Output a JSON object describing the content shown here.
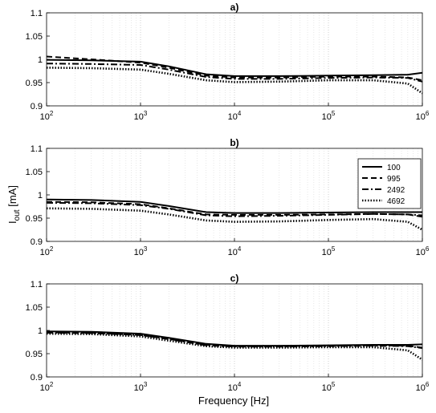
{
  "figure": {
    "ylabel_main": "I",
    "ylabel_sub": "out",
    "ylabel_unit": " [mA]",
    "xlabel": "Frequency [Hz]"
  },
  "chart_data": [
    {
      "type": "line",
      "title": "a)",
      "x_scale": "log",
      "xlim": [
        100,
        1000000
      ],
      "ylim": [
        0.9,
        1.1
      ],
      "y_ticks": [
        "0.9",
        "0.95",
        "1",
        "1.05",
        "1.1"
      ],
      "x_ticks": [
        {
          "base": "10",
          "exp": "2"
        },
        {
          "base": "10",
          "exp": "3"
        },
        {
          "base": "10",
          "exp": "4"
        },
        {
          "base": "10",
          "exp": "5"
        },
        {
          "base": "10",
          "exp": "6"
        }
      ],
      "grid": true,
      "series": [
        {
          "style": "solid",
          "x": [
            100,
            300,
            1000,
            2000,
            5000,
            10000,
            30000,
            100000,
            300000,
            700000,
            1000000
          ],
          "y": [
            0.999,
            0.998,
            0.995,
            0.985,
            0.968,
            0.964,
            0.964,
            0.965,
            0.966,
            0.967,
            0.971
          ]
        },
        {
          "style": "dashed",
          "x": [
            100,
            300,
            1000,
            2000,
            5000,
            10000,
            30000,
            100000,
            300000,
            700000,
            1000000
          ],
          "y": [
            1.006,
            1.0,
            0.993,
            0.982,
            0.965,
            0.961,
            0.961,
            0.963,
            0.963,
            0.961,
            0.955
          ]
        },
        {
          "style": "dashdot",
          "x": [
            100,
            300,
            1000,
            2000,
            5000,
            10000,
            30000,
            100000,
            300000,
            700000,
            1000000
          ],
          "y": [
            0.991,
            0.99,
            0.988,
            0.978,
            0.962,
            0.958,
            0.958,
            0.96,
            0.961,
            0.96,
            0.952
          ]
        },
        {
          "style": "dotted",
          "x": [
            100,
            300,
            1000,
            2000,
            5000,
            10000,
            30000,
            100000,
            300000,
            700000,
            1000000
          ],
          "y": [
            0.982,
            0.981,
            0.978,
            0.969,
            0.955,
            0.951,
            0.952,
            0.955,
            0.955,
            0.948,
            0.927
          ]
        }
      ]
    },
    {
      "type": "line",
      "title": "b)",
      "x_scale": "log",
      "xlim": [
        100,
        1000000
      ],
      "ylim": [
        0.9,
        1.1
      ],
      "y_ticks": [
        "0.9",
        "0.95",
        "1",
        "1.05",
        "1.1"
      ],
      "x_ticks": [
        {
          "base": "10",
          "exp": "2"
        },
        {
          "base": "10",
          "exp": "3"
        },
        {
          "base": "10",
          "exp": "4"
        },
        {
          "base": "10",
          "exp": "5"
        },
        {
          "base": "10",
          "exp": "6"
        }
      ],
      "grid": true,
      "legend": {
        "position": "right",
        "entries": [
          "100",
          "995",
          "2492",
          "4692"
        ]
      },
      "series": [
        {
          "name": "100",
          "style": "solid",
          "x": [
            100,
            300,
            1000,
            2000,
            5000,
            10000,
            30000,
            100000,
            300000,
            700000,
            1000000
          ],
          "y": [
            0.99,
            0.989,
            0.985,
            0.976,
            0.963,
            0.961,
            0.961,
            0.962,
            0.963,
            0.963,
            0.963
          ]
        },
        {
          "name": "995",
          "style": "dashed",
          "x": [
            100,
            300,
            1000,
            2000,
            5000,
            10000,
            30000,
            100000,
            300000,
            700000,
            1000000
          ],
          "y": [
            0.985,
            0.984,
            0.98,
            0.971,
            0.958,
            0.957,
            0.957,
            0.958,
            0.959,
            0.958,
            0.953
          ]
        },
        {
          "name": "2492",
          "style": "dashdot",
          "x": [
            100,
            300,
            1000,
            2000,
            5000,
            10000,
            30000,
            100000,
            300000,
            700000,
            1000000
          ],
          "y": [
            0.983,
            0.982,
            0.978,
            0.97,
            0.956,
            0.954,
            0.955,
            0.957,
            0.959,
            0.958,
            0.956
          ]
        },
        {
          "name": "4692",
          "style": "dotted",
          "x": [
            100,
            300,
            1000,
            2000,
            5000,
            10000,
            30000,
            100000,
            300000,
            700000,
            1000000
          ],
          "y": [
            0.971,
            0.97,
            0.966,
            0.958,
            0.945,
            0.942,
            0.943,
            0.946,
            0.948,
            0.942,
            0.925
          ]
        }
      ]
    },
    {
      "type": "line",
      "title": "c)",
      "x_scale": "log",
      "xlim": [
        100,
        1000000
      ],
      "ylim": [
        0.9,
        1.1
      ],
      "y_ticks": [
        "0.9",
        "0.95",
        "1",
        "1.05",
        "1.1"
      ],
      "x_ticks": [
        {
          "base": "10",
          "exp": "2"
        },
        {
          "base": "10",
          "exp": "3"
        },
        {
          "base": "10",
          "exp": "4"
        },
        {
          "base": "10",
          "exp": "5"
        },
        {
          "base": "10",
          "exp": "6"
        }
      ],
      "grid": true,
      "series": [
        {
          "style": "solid",
          "x": [
            100,
            300,
            1000,
            2000,
            5000,
            10000,
            30000,
            100000,
            300000,
            700000,
            1000000
          ],
          "y": [
            0.998,
            0.997,
            0.993,
            0.984,
            0.971,
            0.967,
            0.967,
            0.968,
            0.969,
            0.969,
            0.97
          ]
        },
        {
          "style": "dashed",
          "x": [
            100,
            300,
            1000,
            2000,
            5000,
            10000,
            30000,
            100000,
            300000,
            700000,
            1000000
          ],
          "y": [
            0.996,
            0.995,
            0.99,
            0.982,
            0.969,
            0.966,
            0.966,
            0.967,
            0.968,
            0.967,
            0.963
          ]
        },
        {
          "style": "dashdot",
          "x": [
            100,
            300,
            1000,
            2000,
            5000,
            10000,
            30000,
            100000,
            300000,
            700000,
            1000000
          ],
          "y": [
            0.995,
            0.994,
            0.99,
            0.981,
            0.968,
            0.965,
            0.965,
            0.966,
            0.967,
            0.966,
            0.962
          ]
        },
        {
          "style": "dotted",
          "x": [
            100,
            300,
            1000,
            2000,
            5000,
            10000,
            30000,
            100000,
            300000,
            700000,
            1000000
          ],
          "y": [
            0.993,
            0.992,
            0.987,
            0.978,
            0.966,
            0.963,
            0.963,
            0.964,
            0.964,
            0.957,
            0.937
          ]
        }
      ]
    }
  ]
}
